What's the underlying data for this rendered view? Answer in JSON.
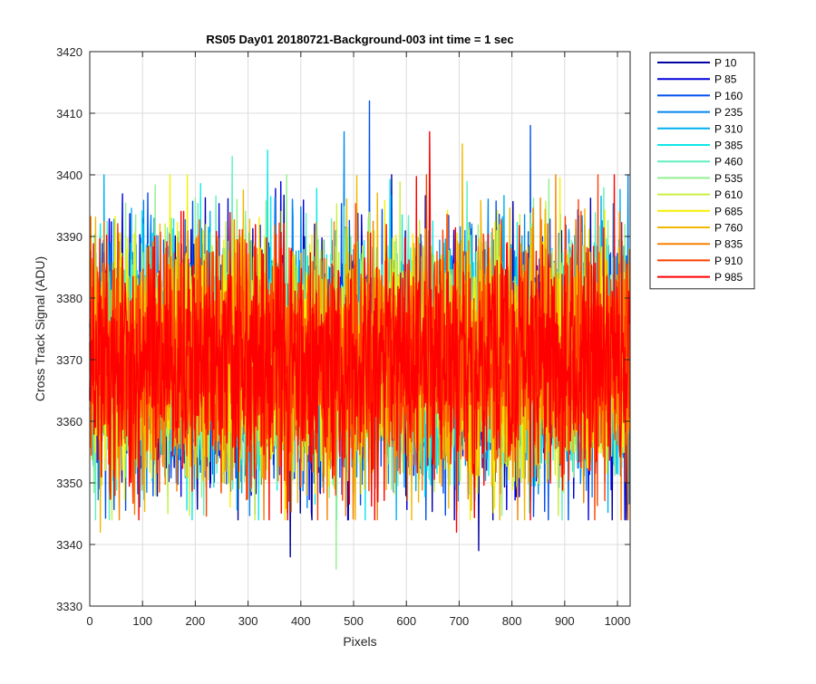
{
  "chart_data": {
    "type": "line",
    "title": "RS05 Day01 20180721-Background-003 int time = 1 sec",
    "xlabel": "Pixels",
    "ylabel": "Cross Track Signal (ADU)",
    "xlim": [
      0,
      1024
    ],
    "ylim": [
      3330,
      3420
    ],
    "xticks": [
      0,
      100,
      200,
      300,
      400,
      500,
      600,
      700,
      800,
      900,
      1000
    ],
    "yticks": [
      3330,
      3340,
      3350,
      3360,
      3370,
      3380,
      3390,
      3400,
      3410,
      3420
    ],
    "grid": true,
    "legend_location": "outside-right-top",
    "noise_model": {
      "x_start": 0,
      "x_end": 1023,
      "mean": 3370,
      "std_dev": 9.5
    },
    "series": [
      {
        "name": "P 10",
        "color": "#0000a0"
      },
      {
        "name": "P 85",
        "color": "#0000dd"
      },
      {
        "name": "P 160",
        "color": "#0050ee"
      },
      {
        "name": "P 235",
        "color": "#0088ee"
      },
      {
        "name": "P 310",
        "color": "#00b0ee"
      },
      {
        "name": "P 385",
        "color": "#10e8e8"
      },
      {
        "name": "P 460",
        "color": "#60f0c0"
      },
      {
        "name": "P 535",
        "color": "#90f090"
      },
      {
        "name": "P 610",
        "color": "#c8f040"
      },
      {
        "name": "P 685",
        "color": "#f8f000"
      },
      {
        "name": "P 760",
        "color": "#f0b800"
      },
      {
        "name": "P 835",
        "color": "#f88000"
      },
      {
        "name": "P 910",
        "color": "#ff4000"
      },
      {
        "name": "P 985",
        "color": "#ff0000"
      }
    ],
    "spikes": [
      {
        "series": "P 10",
        "x": 380,
        "y": 3338
      },
      {
        "series": "P 10",
        "x": 737,
        "y": 3339
      },
      {
        "series": "P 160",
        "x": 530,
        "y": 3412
      },
      {
        "series": "P 160",
        "x": 835,
        "y": 3408
      },
      {
        "series": "P 235",
        "x": 482,
        "y": 3407
      },
      {
        "series": "P 385",
        "x": 337,
        "y": 3404
      },
      {
        "series": "P 460",
        "x": 270,
        "y": 3403
      },
      {
        "series": "P 535",
        "x": 467,
        "y": 3336
      },
      {
        "series": "P 760",
        "x": 706,
        "y": 3405
      },
      {
        "series": "P 760",
        "x": 20,
        "y": 3342
      },
      {
        "series": "P 985",
        "x": 644,
        "y": 3407
      },
      {
        "series": "P 985",
        "x": 695,
        "y": 3342
      }
    ]
  }
}
